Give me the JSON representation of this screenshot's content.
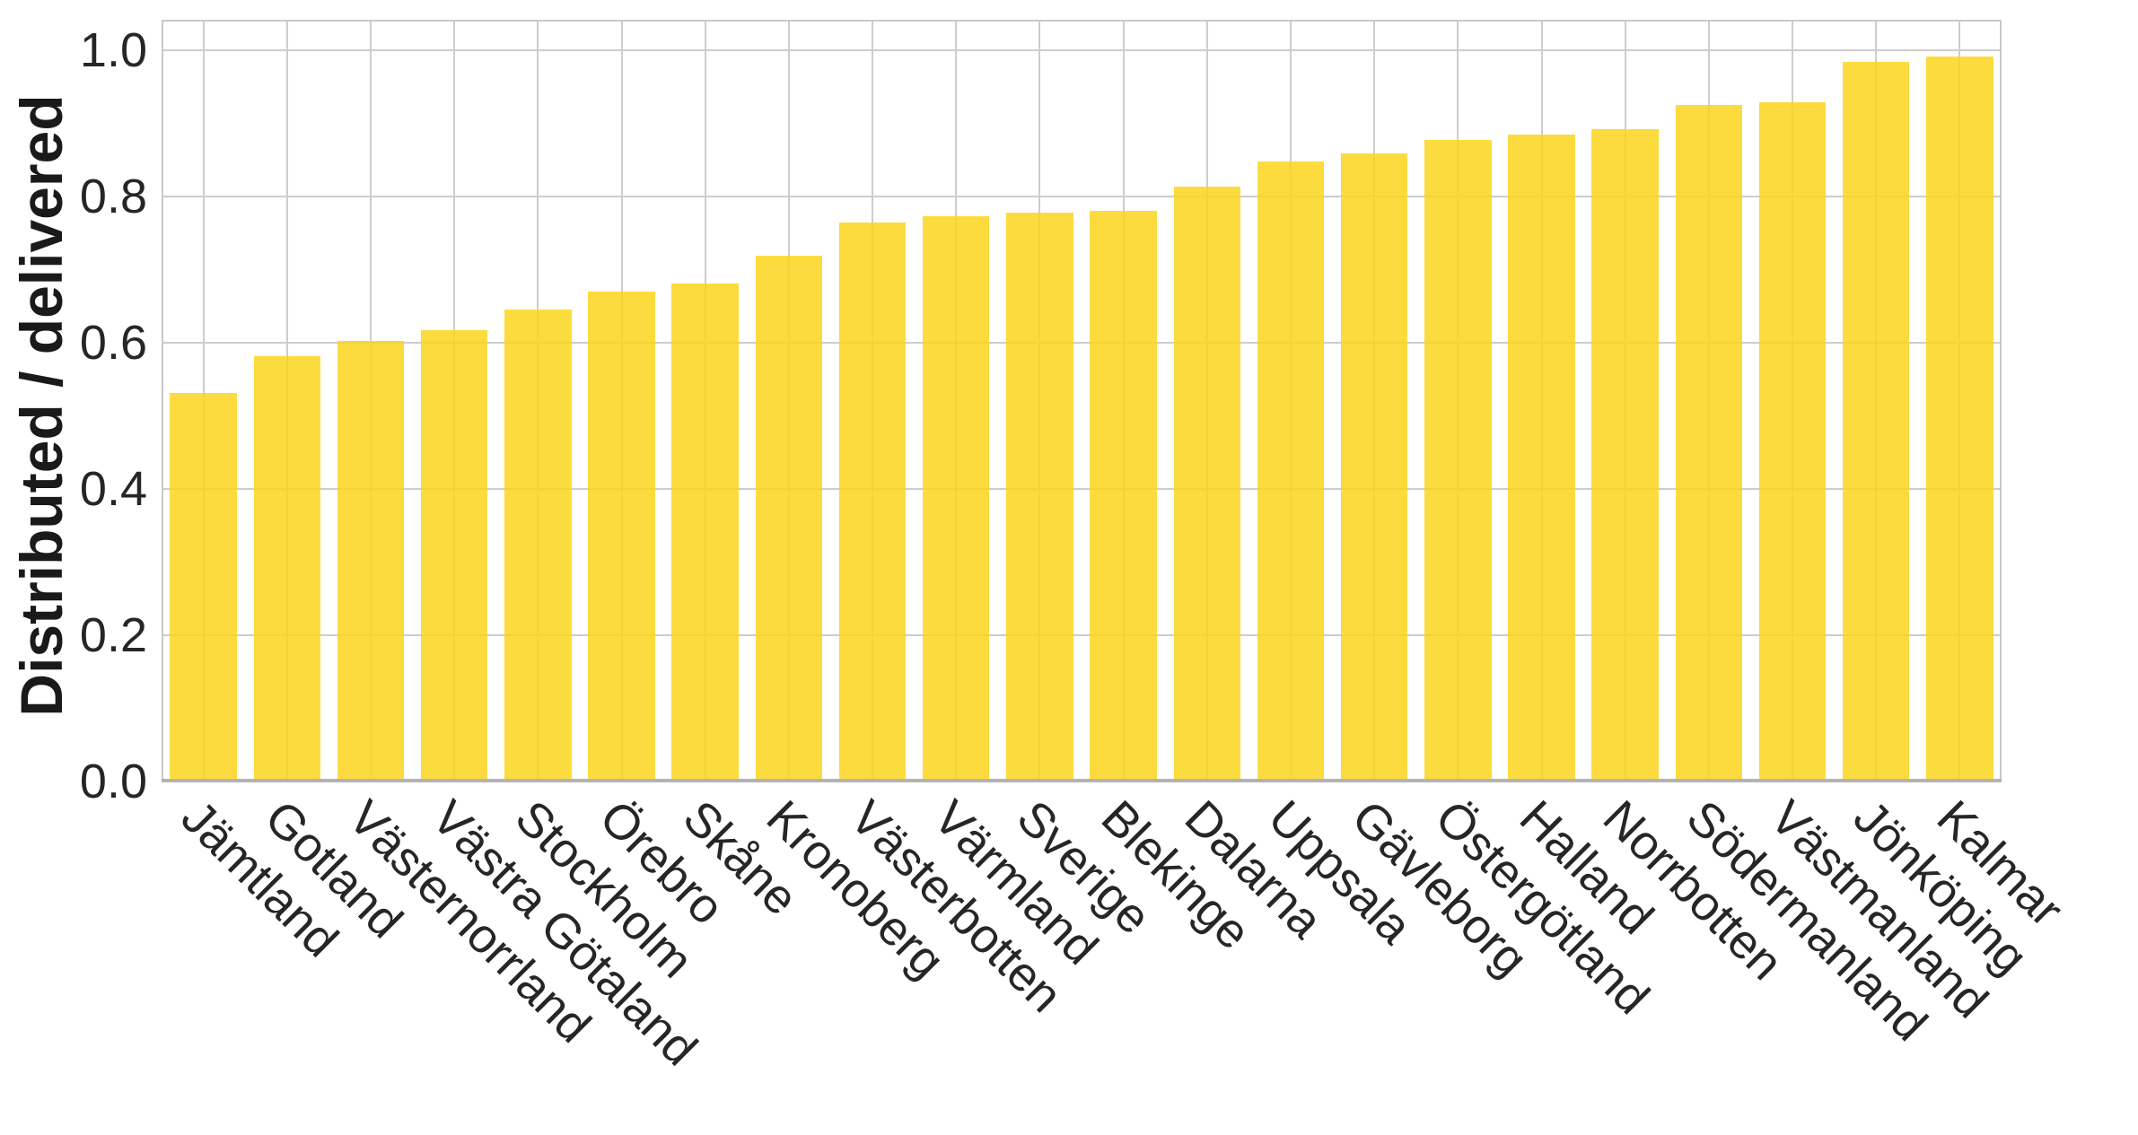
{
  "chart_data": {
    "type": "bar",
    "title": "",
    "xlabel": "",
    "ylabel": "Distributed / delivered",
    "categories": [
      "Jämtland",
      "Gotland",
      "Västernorrland",
      "Västra Götaland",
      "Stockholm",
      "Örebro",
      "Skåne",
      "Kronoberg",
      "Västerbotten",
      "Värmland",
      "Sverige",
      "Blekinge",
      "Dalarna",
      "Uppsala",
      "Gävleborg",
      "Östergötland",
      "Halland",
      "Norrbotten",
      "Södermanland",
      "Västmanland",
      "Jönköping",
      "Kalmar"
    ],
    "values": [
      0.531,
      0.582,
      0.602,
      0.617,
      0.645,
      0.67,
      0.681,
      0.719,
      0.764,
      0.773,
      0.778,
      0.78,
      0.813,
      0.848,
      0.859,
      0.877,
      0.885,
      0.892,
      0.925,
      0.929,
      0.984,
      0.991
    ],
    "ylim": [
      0,
      1.042
    ],
    "yticks": [
      0.0,
      0.2,
      0.4,
      0.6,
      0.8,
      1.0
    ],
    "ytick_labels": [
      "0.0",
      "0.2",
      "0.4",
      "0.6",
      "0.8",
      "1.0"
    ],
    "grid": true,
    "legend": "none",
    "x_label_rotation_deg": 45,
    "colors": {
      "bar_fill": "rgba(252,213,28,0.85)",
      "gridline": "#CDCDCD",
      "spine": "#C9C9C9",
      "axis_line": "#B3B3B3",
      "tick_text": "#262626",
      "axis_label_text": "#1A1A1A",
      "background": "#FFFFFF"
    }
  }
}
